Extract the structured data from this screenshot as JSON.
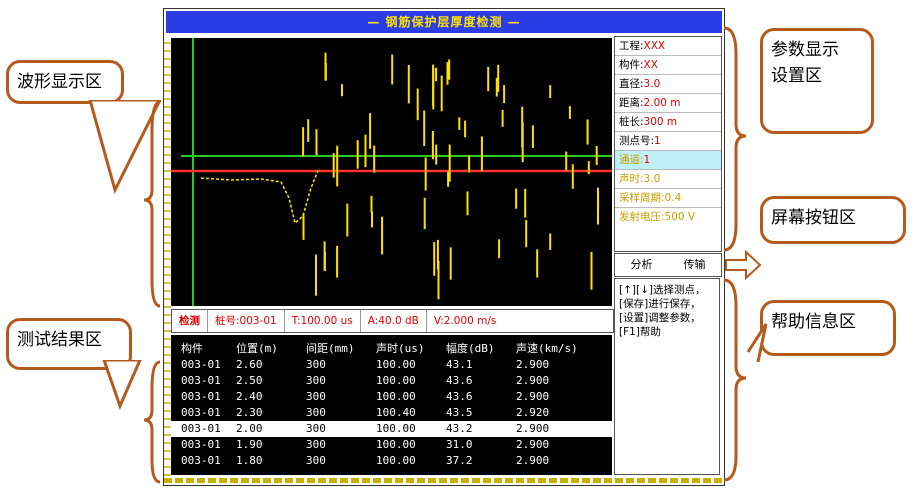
{
  "window": {
    "title": "— 钢筋保护层厚度检测 —"
  },
  "callouts": {
    "waveform": "波形显示区",
    "params": [
      "参数显示",
      "设置区"
    ],
    "buttons": "屏幕按钮区",
    "results": "测试结果区",
    "help": "帮助信息区"
  },
  "status_bar": [
    "检测",
    "桩号:003-01",
    "T:100.00 us",
    "A:40.0 dB",
    "V:2.000 m/s"
  ],
  "results_table": {
    "headers": [
      "构件",
      "位置(m)",
      "间距(mm)",
      "声时(us)",
      "幅度(dB)",
      "声速(km/s)"
    ],
    "rows": [
      [
        "003-01",
        "2.60",
        "300",
        "100.00",
        "43.1",
        "2.900"
      ],
      [
        "003-01",
        "2.50",
        "300",
        "100.00",
        "43.6",
        "2.900"
      ],
      [
        "003-01",
        "2.40",
        "300",
        "100.00",
        "43.6",
        "2.900"
      ],
      [
        "003-01",
        "2.30",
        "300",
        "100.40",
        "43.5",
        "2.920"
      ],
      [
        "003-01",
        "2.00",
        "300",
        "100.00",
        "43.2",
        "2.900"
      ],
      [
        "003-01",
        "1.90",
        "300",
        "100.00",
        "31.0",
        "2.900"
      ],
      [
        "003-01",
        "1.80",
        "300",
        "100.00",
        "37.2",
        "2.900"
      ]
    ],
    "selected_row": 4
  },
  "params": {
    "project_label": "工程:",
    "project_value": "XXX",
    "member_label": "构件:",
    "member_value": "XX",
    "diameter_label": "直径:",
    "diameter_value": "3.0",
    "distance_label": "距离:",
    "distance_value": "2.00 m",
    "length_label": "桩长:",
    "length_value": "300 m",
    "serial_label": "测点号:",
    "serial_value": "1",
    "channel_label": "通道:",
    "channel_value": "1",
    "sound_label": "声时:",
    "sound_value": "3.0",
    "period_label": "采样周期:",
    "period_value": "0.4",
    "voltage_label": "发射电压:",
    "voltage_value": "500 V"
  },
  "buttons": {
    "analyze": "分析",
    "transfer": "传输"
  },
  "help": {
    "text": "[↑][↓]选择测点，[保存]进行保存，[设置]调整参数，[F1]帮助"
  },
  "colors": {
    "title_bg": "#2b3ee6",
    "callout_border": "#b55a1e",
    "trace": "#ffe000",
    "baseline": "#ff3030",
    "marker": "#22cc22"
  }
}
